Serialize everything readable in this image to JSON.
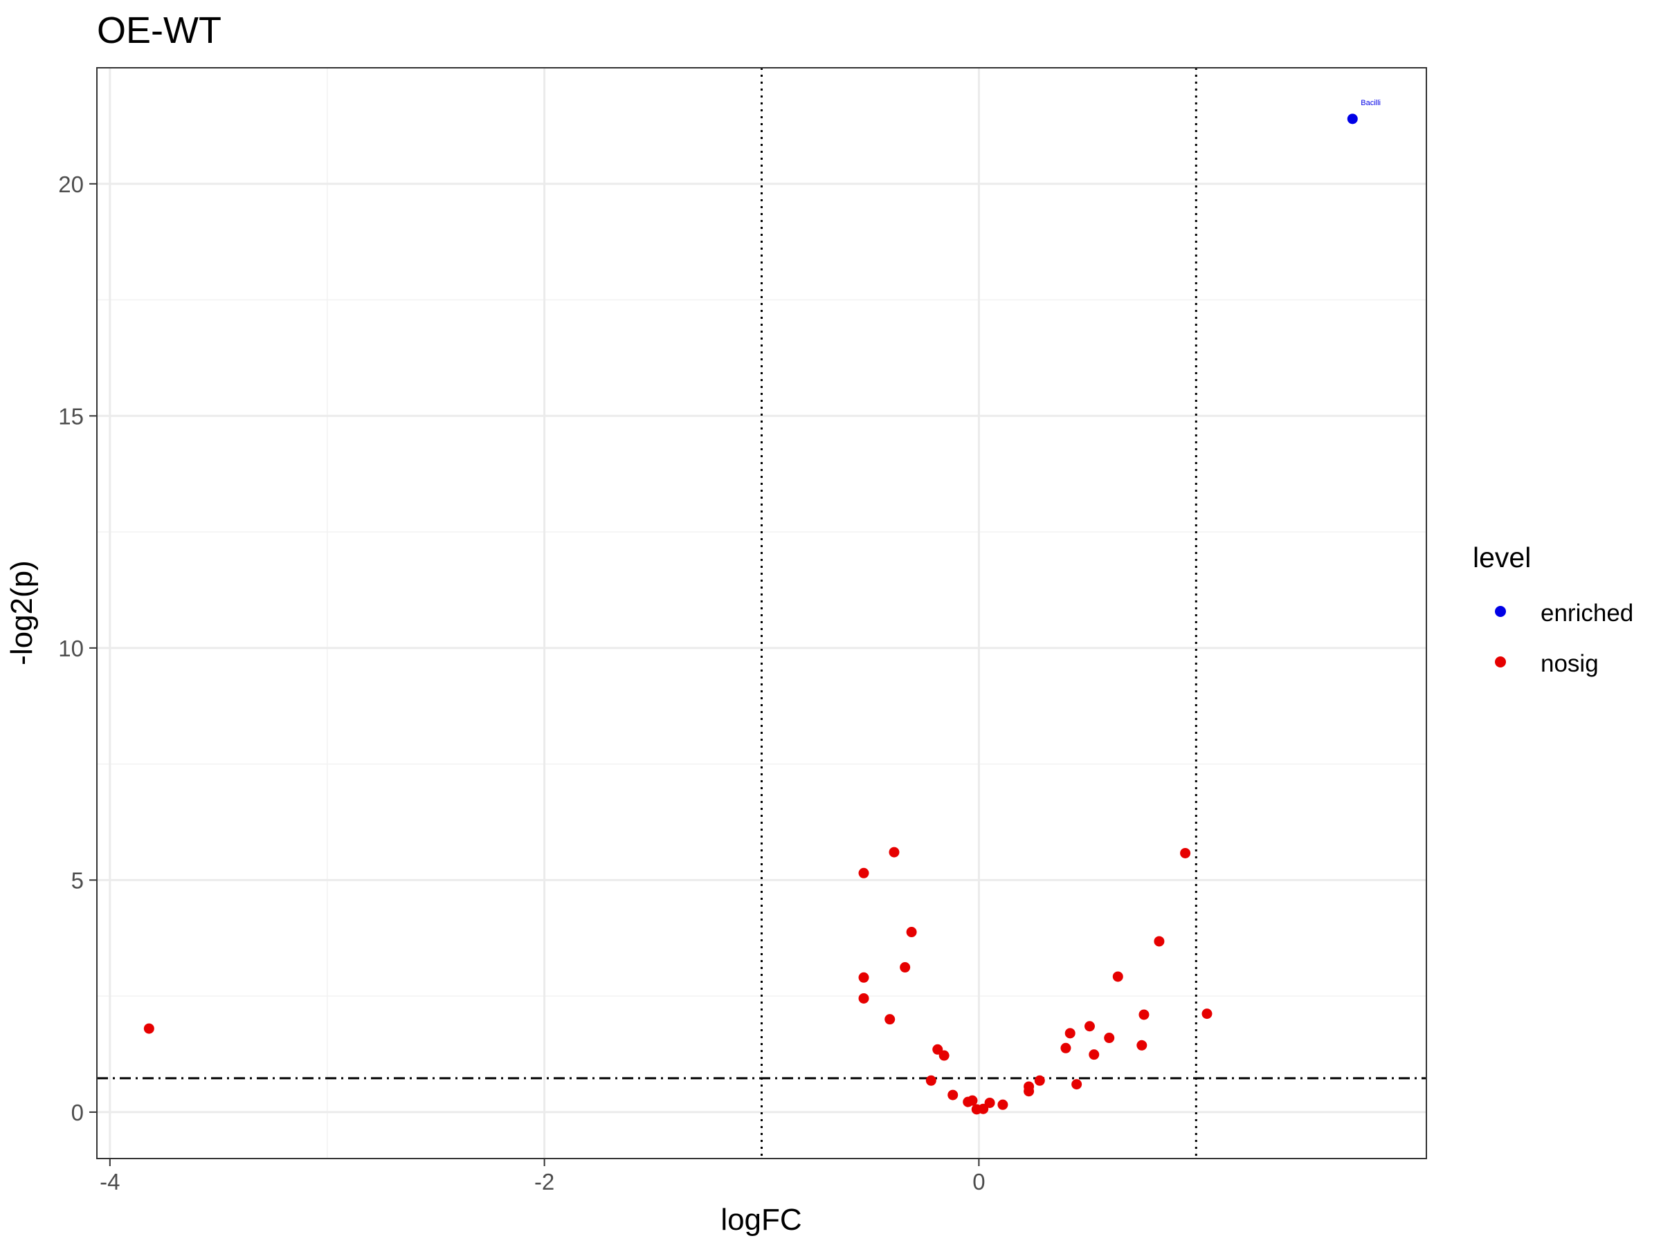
{
  "chart_data": {
    "type": "scatter",
    "title": "OE-WT",
    "xlabel": "logFC",
    "ylabel": "-log2(p)",
    "xlim": [
      -4.06,
      2.06
    ],
    "ylim": [
      -1.0,
      22.5
    ],
    "x_ticks": [
      -4,
      -2,
      0
    ],
    "x_tick_labels": [
      "-4",
      "-2",
      "0"
    ],
    "y_ticks": [
      0,
      5,
      10,
      15,
      20
    ],
    "y_tick_labels": [
      "0",
      "5",
      "10",
      "15",
      "20"
    ],
    "grid": true,
    "reference_lines": {
      "vertical_dotted": [
        -1,
        1
      ],
      "horizontal_dashdot": 0.73
    },
    "legend": {
      "title": "level",
      "placement": "right",
      "entries": [
        {
          "label": "enriched",
          "color": "#0000e6"
        },
        {
          "label": "nosig",
          "color": "#e60000"
        }
      ]
    },
    "colors": {
      "enriched": "#0000e6",
      "nosig": "#e60000"
    },
    "series": [
      {
        "name": "enriched",
        "points": [
          {
            "x": 1.72,
            "y": 21.4,
            "label": "Bacilli"
          }
        ]
      },
      {
        "name": "nosig",
        "points": [
          {
            "x": -3.82,
            "y": 1.8
          },
          {
            "x": -0.53,
            "y": 5.15
          },
          {
            "x": -0.39,
            "y": 5.6
          },
          {
            "x": -0.53,
            "y": 2.9
          },
          {
            "x": -0.53,
            "y": 2.45
          },
          {
            "x": -0.31,
            "y": 3.88
          },
          {
            "x": -0.34,
            "y": 3.12
          },
          {
            "x": -0.41,
            "y": 2.0
          },
          {
            "x": -0.19,
            "y": 1.35
          },
          {
            "x": -0.16,
            "y": 1.22
          },
          {
            "x": -0.22,
            "y": 0.68
          },
          {
            "x": -0.12,
            "y": 0.37
          },
          {
            "x": -0.05,
            "y": 0.22
          },
          {
            "x": -0.03,
            "y": 0.25
          },
          {
            "x": -0.01,
            "y": 0.06
          },
          {
            "x": 0.02,
            "y": 0.07
          },
          {
            "x": 0.05,
            "y": 0.2
          },
          {
            "x": 0.11,
            "y": 0.16
          },
          {
            "x": 0.23,
            "y": 0.45
          },
          {
            "x": 0.23,
            "y": 0.55
          },
          {
            "x": 0.28,
            "y": 0.68
          },
          {
            "x": 0.4,
            "y": 1.38
          },
          {
            "x": 0.42,
            "y": 1.7
          },
          {
            "x": 0.45,
            "y": 0.6
          },
          {
            "x": 0.51,
            "y": 1.85
          },
          {
            "x": 0.53,
            "y": 1.24
          },
          {
            "x": 0.6,
            "y": 1.6
          },
          {
            "x": 0.64,
            "y": 2.92
          },
          {
            "x": 0.75,
            "y": 1.44
          },
          {
            "x": 0.76,
            "y": 2.1
          },
          {
            "x": 0.83,
            "y": 3.68
          },
          {
            "x": 0.95,
            "y": 5.58
          },
          {
            "x": 1.05,
            "y": 2.12
          }
        ]
      }
    ]
  }
}
